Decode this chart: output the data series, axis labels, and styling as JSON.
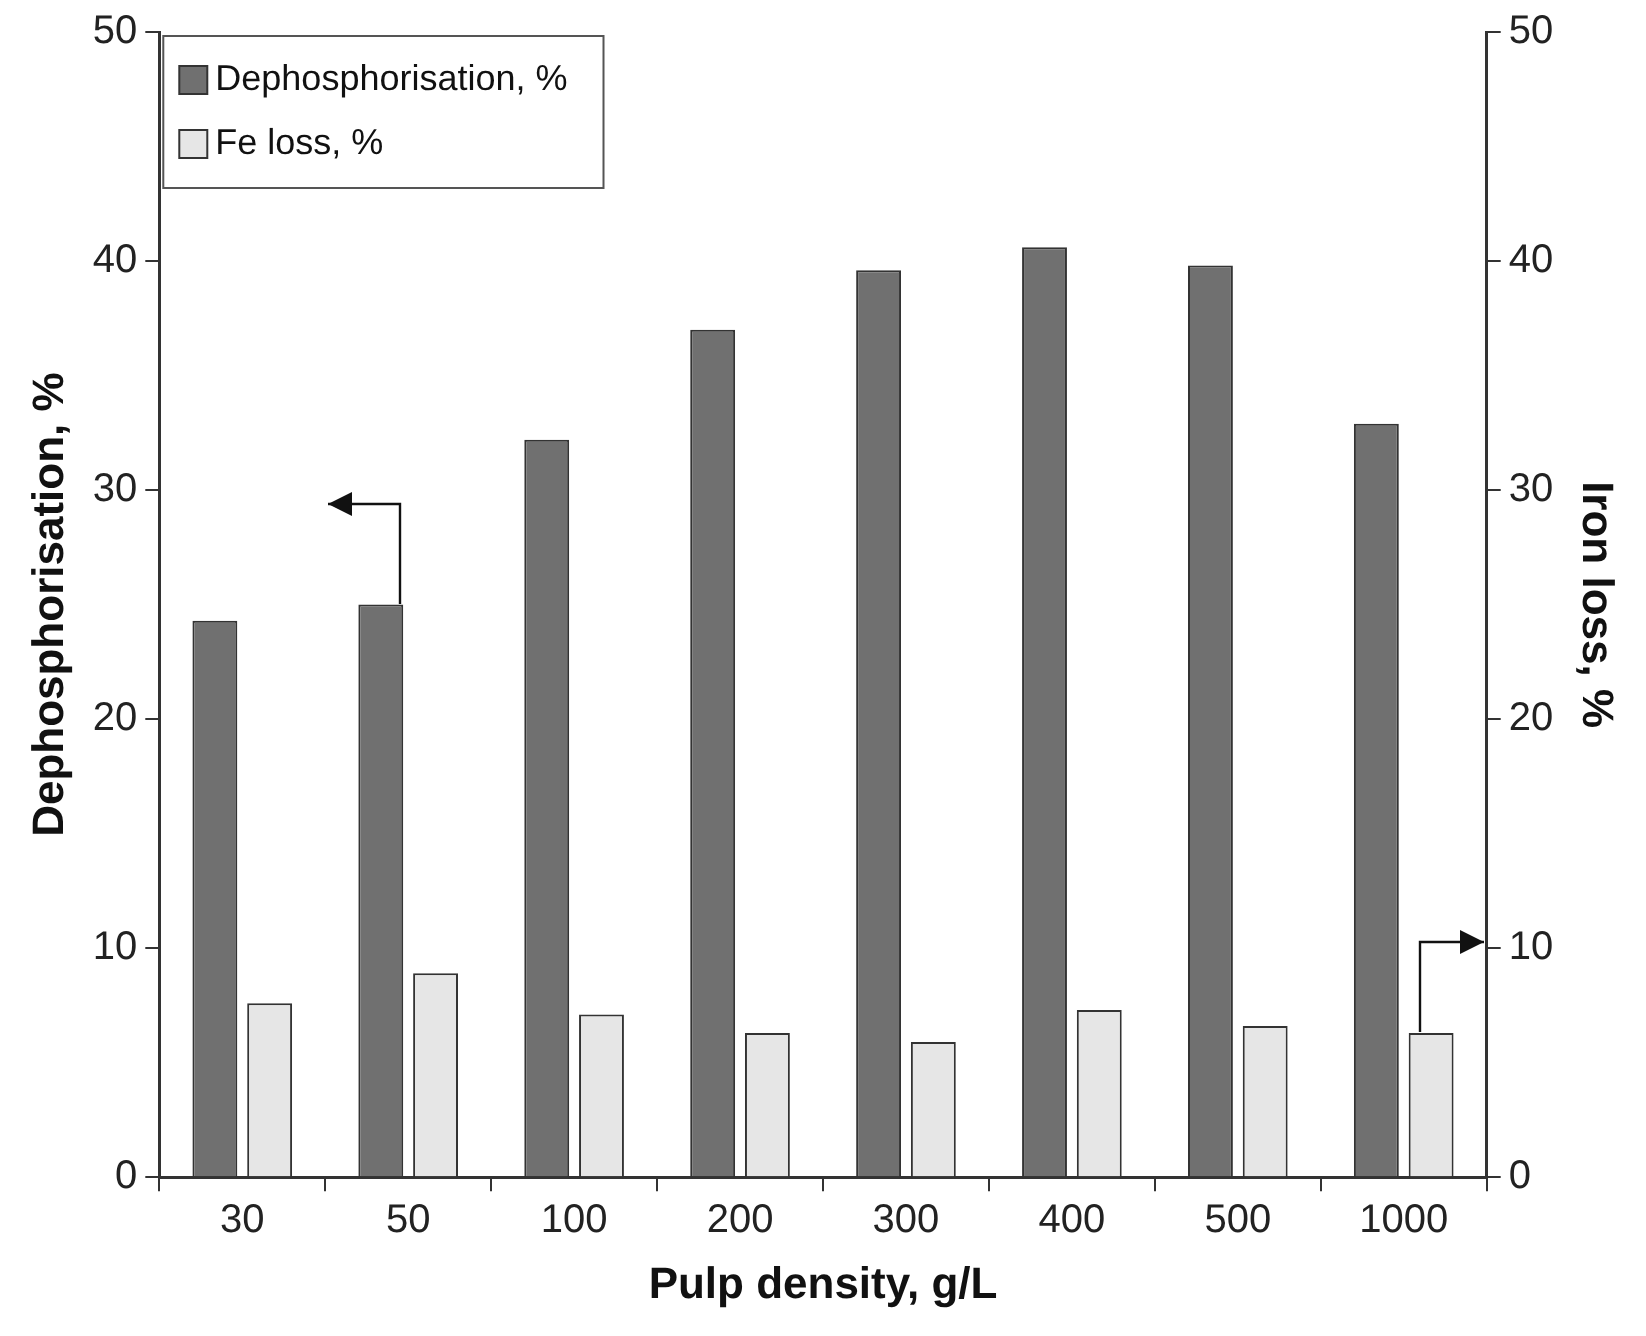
{
  "chart_data": {
    "type": "bar",
    "categories": [
      "30",
      "50",
      "100",
      "200",
      "300",
      "400",
      "500",
      "1000"
    ],
    "xlabel": "Pulp density, g/L",
    "ylabel": "Dephosphorisation, %",
    "y2label": "Iron loss, %",
    "series": [
      {
        "name": "Dephosphorisation, %",
        "color": "#707070",
        "values": [
          24.3,
          25.0,
          32.2,
          37.0,
          39.6,
          40.6,
          39.8,
          32.9
        ]
      },
      {
        "name": "Fe loss, %",
        "color": "#e6e6e6",
        "axis": "y2",
        "values": [
          7.6,
          8.9,
          7.1,
          6.3,
          5.9,
          7.3,
          6.6,
          6.3
        ]
      }
    ],
    "ylim": [
      0,
      50
    ],
    "yticks": [
      0,
      10,
      20,
      30,
      40,
      50
    ],
    "y2lim": [
      0,
      50
    ],
    "y2ticks": [
      0,
      10,
      20,
      30,
      40,
      50
    ],
    "grid": false,
    "legend": "top left"
  }
}
